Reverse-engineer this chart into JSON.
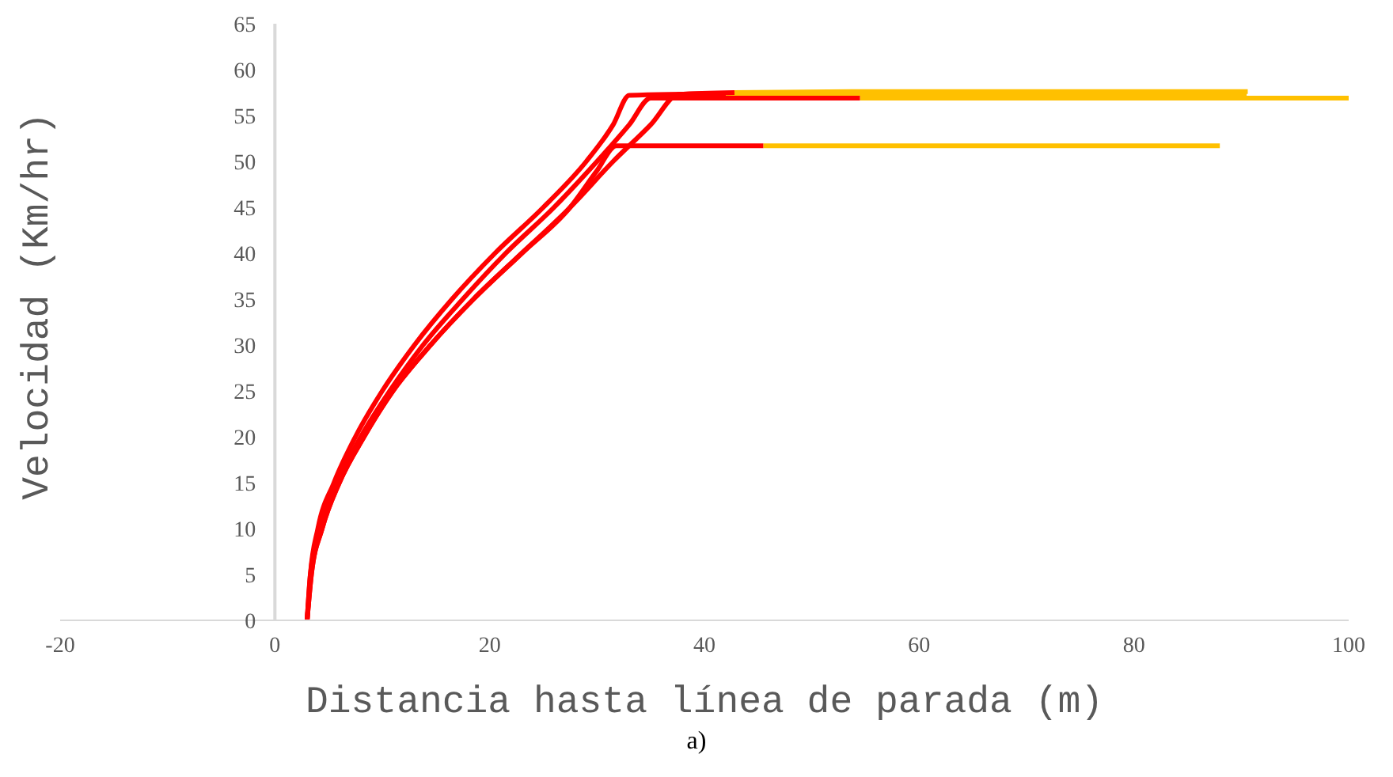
{
  "chart_data": {
    "type": "line",
    "xlabel": "Distancia hasta línea de parada (m)",
    "ylabel": "Velocidad (Km/hr)",
    "annotations": [
      "a)"
    ],
    "xlim": [
      -20,
      100
    ],
    "xticks": [
      -20,
      0,
      20,
      40,
      60,
      80,
      100
    ],
    "ylim": [
      0,
      65
    ],
    "yticks": [
      0,
      5,
      10,
      15,
      20,
      25,
      30,
      35,
      40,
      45,
      50,
      55,
      60,
      65
    ],
    "grid": false,
    "marker": "none",
    "line_style": "solid",
    "series": [
      {
        "color": "#ff0000",
        "x": [
          3,
          3.3,
          4,
          5.5,
          7.5,
          10,
          13,
          16.5,
          20.5,
          25,
          29,
          31.5,
          33,
          42
        ],
        "values": [
          0,
          5,
          10,
          15,
          20,
          25,
          30,
          35,
          40,
          45,
          50,
          54,
          57.2,
          57.4
        ]
      },
      {
        "color": "#ffc000",
        "x": [
          42,
          90.5
        ],
        "values": [
          57.4,
          57.4
        ]
      },
      {
        "color": "#ff0000",
        "x": [
          3,
          3.3,
          4.2,
          5.8,
          8,
          10.7,
          13.8,
          17.5,
          21.5,
          26,
          30,
          33,
          35,
          54.5
        ],
        "values": [
          0,
          5,
          10,
          15,
          20,
          25,
          30,
          35,
          40,
          45,
          50,
          54,
          56.9,
          56.9
        ]
      },
      {
        "color": "#ffc000",
        "x": [
          54.5,
          100
        ],
        "values": [
          56.9,
          56.9
        ]
      },
      {
        "color": "#ff0000",
        "x": [
          3,
          3.4,
          4.4,
          6,
          8.3,
          11,
          14.5,
          18.5,
          23,
          27.5,
          31.5,
          35,
          37.6,
          42.8
        ],
        "values": [
          0,
          5,
          10,
          15,
          20,
          25,
          30,
          35,
          40,
          45,
          50,
          54,
          57.3,
          57.5
        ]
      },
      {
        "color": "#ffc000",
        "x": [
          42.8,
          53.7,
          90.6
        ],
        "values": [
          57.5,
          57.6,
          57.6
        ]
      },
      {
        "color": "#ff0000",
        "x": [
          3,
          3.4,
          4.4,
          6,
          8.3,
          11,
          14.5,
          18.5,
          23,
          27.5,
          30,
          31.8,
          45.5
        ],
        "values": [
          0,
          5,
          10,
          15,
          20,
          25,
          30,
          35,
          40,
          45,
          49,
          51.7,
          51.7
        ]
      },
      {
        "color": "#ffc000",
        "x": [
          45.5,
          88
        ],
        "values": [
          51.7,
          51.7
        ]
      }
    ]
  }
}
